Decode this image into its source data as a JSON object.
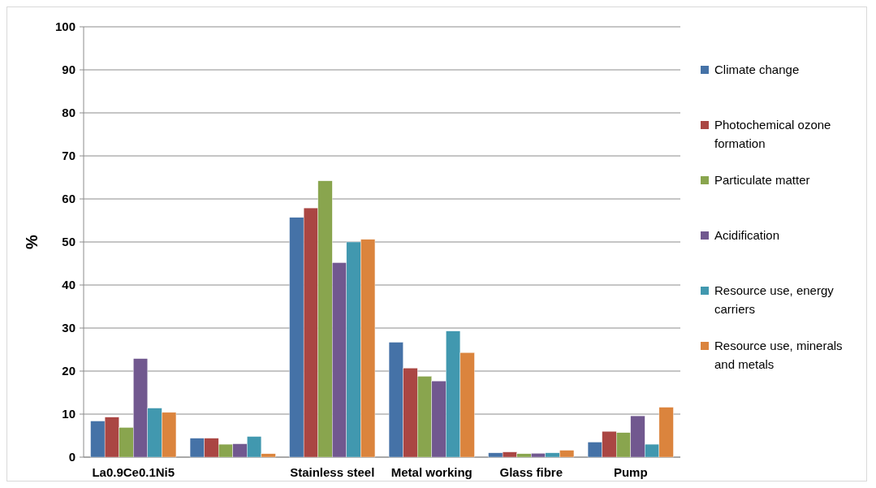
{
  "chart_data": {
    "type": "bar",
    "ylabel": "%",
    "categories": [
      "La0.9Ce0.1Ni5",
      null,
      "Stainless steel",
      "Metal working",
      "Glass fibre",
      "Pump"
    ],
    "series": [
      {
        "name": "Climate change",
        "color": "#4572a7",
        "values": [
          8.4,
          4.4,
          55.7,
          26.7,
          1.0,
          3.5
        ]
      },
      {
        "name": "Photochemical ozone formation",
        "color": "#aa4643",
        "values": [
          9.3,
          4.4,
          57.9,
          20.7,
          1.2,
          6.0
        ]
      },
      {
        "name": "Particulate matter",
        "color": "#89a54e",
        "values": [
          6.9,
          3.0,
          64.2,
          18.8,
          0.8,
          5.7
        ]
      },
      {
        "name": "Acidification",
        "color": "#71588f",
        "values": [
          22.9,
          3.1,
          45.2,
          17.7,
          0.9,
          9.6
        ]
      },
      {
        "name": "Resource use, energy carriers",
        "color": "#4198af",
        "values": [
          11.4,
          4.8,
          50.0,
          29.3,
          1.0,
          3.0
        ]
      },
      {
        "name": "Resource use, minerals and metals",
        "color": "#db843d",
        "values": [
          10.4,
          0.8,
          50.6,
          24.3,
          1.6,
          11.6
        ]
      }
    ],
    "ylim": [
      0,
      100
    ],
    "yticks": [
      0,
      10,
      20,
      30,
      40,
      50,
      60,
      70,
      80,
      90,
      100
    ],
    "grid": "y",
    "legend": "right"
  }
}
